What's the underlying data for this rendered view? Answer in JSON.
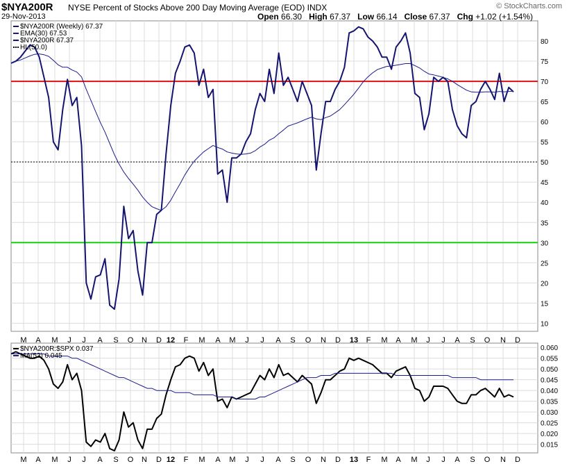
{
  "header": {
    "symbol": "$NYA200R",
    "name": "NYSE Percent of Stocks Above 200 Day Moving Average (EOD)",
    "exchange": "INDX",
    "date": "29-Nov-2013",
    "brand": "© StockCharts.com",
    "open_label": "Open",
    "open": "66.30",
    "high_label": "High",
    "high": "67.37",
    "low_label": "Low",
    "low": "66.14",
    "close_label": "Close",
    "close": "67.37",
    "chg_label": "Chg",
    "chg": "+1.02 (+1.54%)"
  },
  "chart_data": [
    {
      "type": "line",
      "title": "$NYA200R NYSE Percent of Stocks Above 200 Day Moving Average (EOD) INDX",
      "ylim": [
        8,
        85
      ],
      "yticks": [
        10,
        15,
        20,
        25,
        30,
        35,
        40,
        45,
        50,
        55,
        60,
        65,
        70,
        75,
        80
      ],
      "x_ticks": [
        "M",
        "A",
        "M",
        "J",
        "J",
        "A",
        "S",
        "O",
        "N",
        "D",
        "12",
        "F",
        "M",
        "A",
        "M",
        "J",
        "J",
        "A",
        "S",
        "O",
        "N",
        "D",
        "13",
        "F",
        "M",
        "A",
        "M",
        "J",
        "J",
        "A",
        "S",
        "O",
        "N",
        "D"
      ],
      "x_tick_bold": [
        "12",
        "13"
      ],
      "legend": [
        {
          "label": "$NYA200R (Weekly) 67.37",
          "color": "#14146e"
        },
        {
          "label": "EMA(30) 67.53",
          "color": "#1a1a8c"
        },
        {
          "label": "$NYA200R 67.37",
          "color": "#14146e"
        },
        {
          "label": "HL(50.0)",
          "color": "#000000"
        }
      ],
      "hlines": [
        {
          "value": 70,
          "color": "#e01010",
          "style": "solid"
        },
        {
          "value": 50,
          "color": "#000000",
          "style": "dotted"
        },
        {
          "value": 30,
          "color": "#10d010",
          "style": "solid"
        }
      ],
      "series": [
        {
          "name": "$NYA200R",
          "color": "#14146e",
          "values": [
            74.5,
            75,
            76,
            77.5,
            79,
            78.5,
            76,
            71,
            66,
            55,
            53,
            63,
            70.5,
            64,
            66,
            54,
            20,
            16,
            21.5,
            22,
            26,
            14.5,
            13.5,
            21,
            39,
            31,
            33,
            23,
            17,
            30,
            30,
            37,
            38,
            52,
            64,
            72,
            75,
            78.5,
            79,
            77,
            69,
            73,
            66,
            68,
            47,
            48,
            40,
            51,
            51,
            52,
            55,
            57,
            63,
            67,
            65,
            73,
            67,
            77,
            69,
            71,
            68,
            65,
            70,
            67,
            64,
            48,
            57,
            65,
            65,
            68,
            70,
            73.5,
            82,
            82.5,
            83.5,
            83,
            81,
            80,
            78.5,
            76,
            76,
            73,
            78.5,
            80,
            82,
            77,
            67,
            66,
            58,
            62,
            71,
            70,
            71,
            70,
            63,
            59,
            57,
            56,
            64,
            65,
            68,
            70,
            68,
            65.5,
            72,
            65,
            68.5,
            67.37
          ]
        },
        {
          "name": "EMA(30)",
          "color": "#1a1a8c",
          "values": [
            74.5,
            75,
            75.3,
            75.8,
            76.3,
            76.7,
            76.8,
            76.6,
            76.2,
            75.2,
            74.1,
            73.5,
            73.5,
            72.8,
            72.3,
            71.1,
            68,
            65.3,
            62.5,
            59.8,
            57.4,
            54.6,
            51.8,
            49.5,
            47.5,
            45.9,
            44.5,
            43,
            41.3,
            40,
            38.9,
            38.4,
            38,
            38.9,
            40.5,
            42.6,
            44.6,
            46.8,
            48.6,
            50.2,
            51.4,
            52.5,
            53.3,
            54.1,
            53.6,
            53.2,
            52.5,
            52.2,
            52,
            51.9,
            52,
            52.2,
            52.8,
            53.7,
            54.4,
            55.4,
            56,
            57,
            57.9,
            58.9,
            59.3,
            59.7,
            60.2,
            60.7,
            61.1,
            60.7,
            60.5,
            61,
            61.4,
            62.2,
            63,
            64.2,
            65.5,
            66.8,
            68.3,
            69.9,
            71.1,
            72.1,
            72.9,
            73.3,
            73.7,
            73.8,
            74,
            74.2,
            74.4,
            74.4,
            73.9,
            73.3,
            72.5,
            71.8,
            71.6,
            71.3,
            71,
            70.6,
            70,
            69.2,
            68.5,
            67.8,
            67.4,
            67.3,
            67.3,
            67.4,
            67.4,
            67.3,
            67.5,
            67.4,
            67.5,
            67.53
          ]
        }
      ]
    },
    {
      "type": "line",
      "title": "$NYA200R:$SPX 0.037",
      "ylim": [
        0.011,
        0.062
      ],
      "yticks": [
        0.015,
        0.02,
        0.025,
        0.03,
        0.035,
        0.04,
        0.045,
        0.05,
        0.055,
        0.06
      ],
      "x_ticks": [
        "M",
        "A",
        "M",
        "J",
        "J",
        "A",
        "S",
        "O",
        "N",
        "D",
        "12",
        "F",
        "M",
        "A",
        "M",
        "J",
        "J",
        "A",
        "S",
        "O",
        "N",
        "D",
        "13",
        "F",
        "M",
        "A",
        "M",
        "J",
        "J",
        "A",
        "S",
        "O",
        "N",
        "D"
      ],
      "legend": [
        {
          "label": "$NYA200R:$SPX 0.037",
          "color": "#000000"
        },
        {
          "label": "MA(52) 0.045",
          "color": "#1a1a8c"
        }
      ],
      "series": [
        {
          "name": "$NYA200R:$SPX",
          "color": "#000000",
          "values": [
            0.057,
            0.058,
            0.057,
            0.056,
            0.055,
            0.055,
            0.056,
            0.054,
            0.05,
            0.043,
            0.041,
            0.044,
            0.052,
            0.045,
            0.048,
            0.04,
            0.016,
            0.014,
            0.017,
            0.016,
            0.02,
            0.013,
            0.012,
            0.017,
            0.03,
            0.023,
            0.025,
            0.017,
            0.013,
            0.022,
            0.022,
            0.027,
            0.029,
            0.038,
            0.045,
            0.051,
            0.052,
            0.055,
            0.056,
            0.055,
            0.049,
            0.053,
            0.047,
            0.05,
            0.035,
            0.036,
            0.032,
            0.037,
            0.036,
            0.037,
            0.038,
            0.039,
            0.043,
            0.047,
            0.045,
            0.05,
            0.046,
            0.052,
            0.047,
            0.048,
            0.046,
            0.044,
            0.047,
            0.045,
            0.043,
            0.034,
            0.039,
            0.045,
            0.045,
            0.047,
            0.049,
            0.05,
            0.055,
            0.054,
            0.055,
            0.054,
            0.053,
            0.052,
            0.05,
            0.048,
            0.048,
            0.046,
            0.049,
            0.05,
            0.051,
            0.047,
            0.041,
            0.04,
            0.035,
            0.037,
            0.042,
            0.042,
            0.042,
            0.041,
            0.038,
            0.035,
            0.034,
            0.034,
            0.038,
            0.038,
            0.04,
            0.041,
            0.039,
            0.037,
            0.041,
            0.037,
            0.038,
            0.037
          ]
        },
        {
          "name": "MA(52)",
          "color": "#1a1a8c",
          "values": [
            0.057,
            0.057,
            0.057,
            0.057,
            0.057,
            0.057,
            0.057,
            0.057,
            0.056,
            0.056,
            0.056,
            0.056,
            0.056,
            0.055,
            0.055,
            0.054,
            0.053,
            0.052,
            0.051,
            0.05,
            0.049,
            0.048,
            0.047,
            0.046,
            0.046,
            0.045,
            0.044,
            0.043,
            0.042,
            0.041,
            0.041,
            0.04,
            0.04,
            0.04,
            0.04,
            0.039,
            0.039,
            0.039,
            0.039,
            0.038,
            0.038,
            0.038,
            0.038,
            0.038,
            0.037,
            0.037,
            0.037,
            0.037,
            0.036,
            0.036,
            0.036,
            0.036,
            0.036,
            0.037,
            0.037,
            0.038,
            0.039,
            0.04,
            0.041,
            0.042,
            0.043,
            0.044,
            0.045,
            0.046,
            0.046,
            0.046,
            0.047,
            0.047,
            0.047,
            0.048,
            0.048,
            0.048,
            0.048,
            0.048,
            0.048,
            0.048,
            0.048,
            0.048,
            0.048,
            0.048,
            0.048,
            0.048,
            0.047,
            0.047,
            0.047,
            0.047,
            0.047,
            0.047,
            0.047,
            0.047,
            0.047,
            0.047,
            0.047,
            0.047,
            0.046,
            0.046,
            0.046,
            0.046,
            0.046,
            0.046,
            0.045,
            0.045,
            0.045,
            0.045,
            0.045,
            0.045,
            0.045,
            0.045
          ]
        }
      ]
    }
  ]
}
